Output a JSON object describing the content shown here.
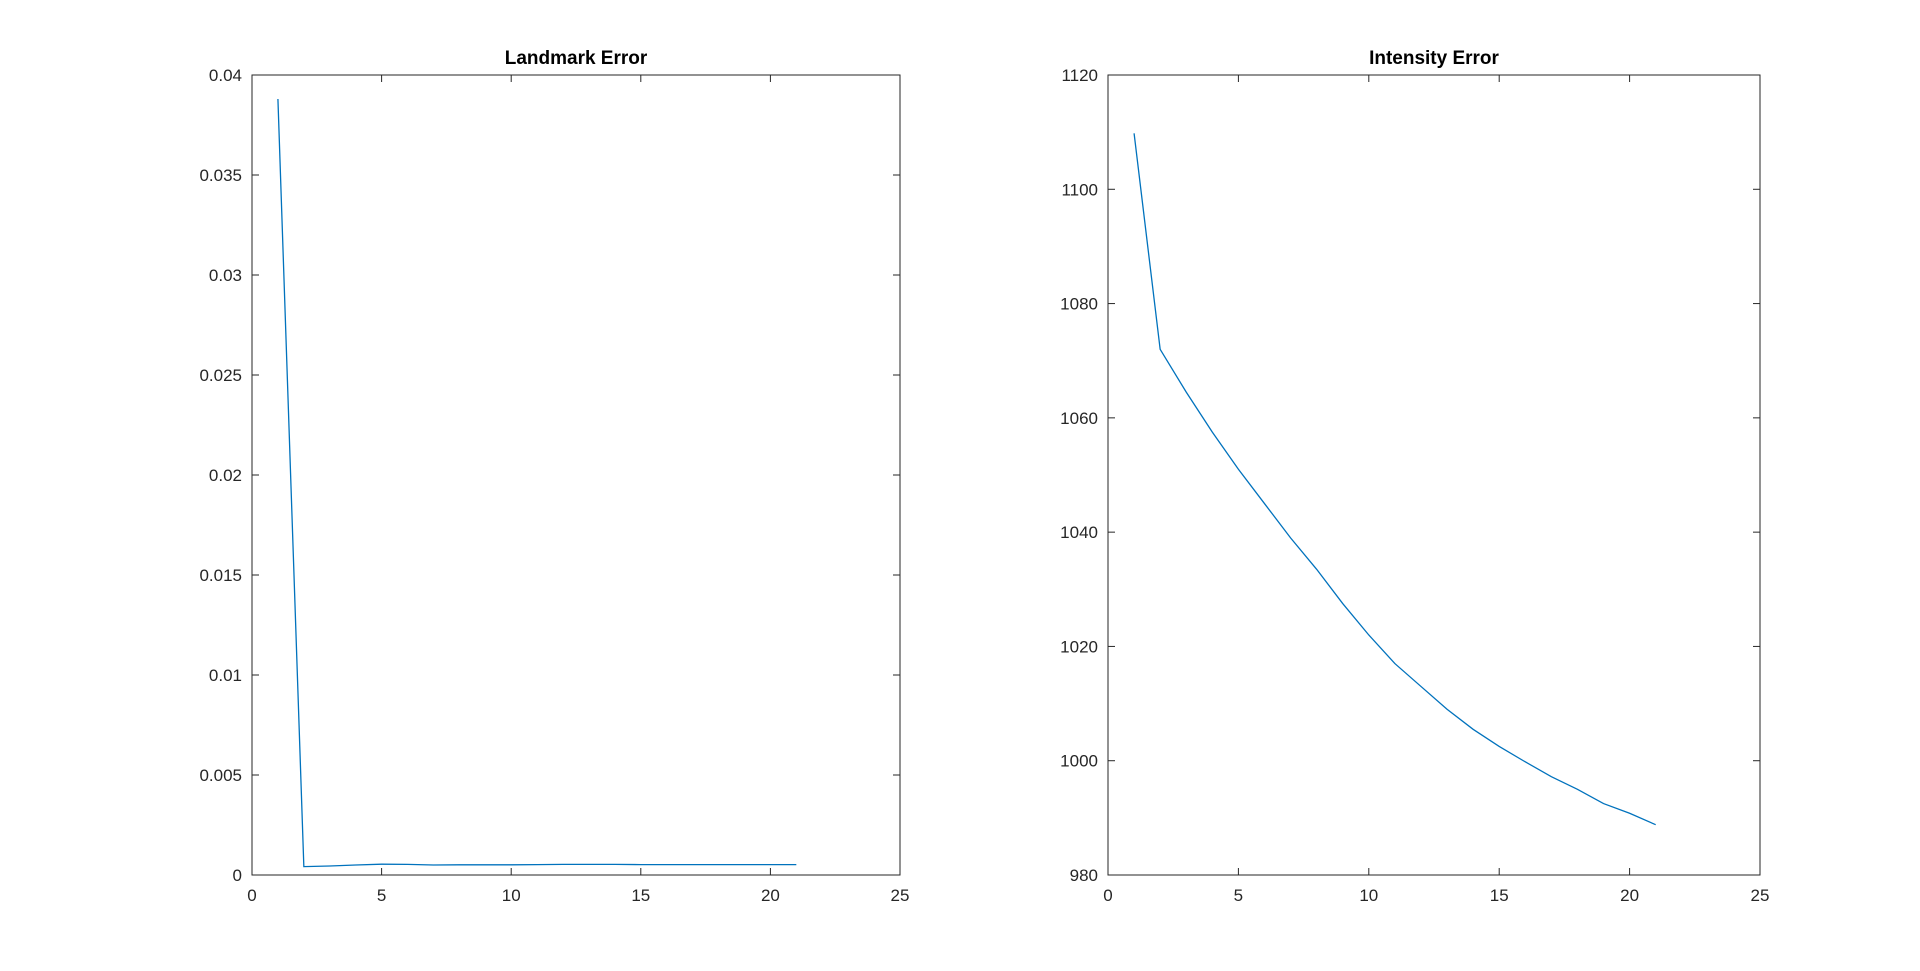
{
  "figure": {
    "background": "#ffffff",
    "axis_color": "#262626"
  },
  "chart_data": [
    {
      "type": "line",
      "title": "Landmark Error",
      "xlabel": "",
      "ylabel": "",
      "xlim": [
        0,
        25
      ],
      "ylim": [
        0,
        0.04
      ],
      "xticks": [
        0,
        5,
        10,
        15,
        20,
        25
      ],
      "xtick_labels": [
        "0",
        "5",
        "10",
        "15",
        "20",
        "25"
      ],
      "yticks": [
        0,
        0.005,
        0.01,
        0.015,
        0.02,
        0.025,
        0.03,
        0.035,
        0.04
      ],
      "ytick_labels": [
        "0",
        "0.005",
        "0.01",
        "0.015",
        "0.02",
        "0.025",
        "0.03",
        "0.035",
        "0.04"
      ],
      "grid": false,
      "series": [
        {
          "color": "#0072BD",
          "x": [
            1,
            2,
            3,
            4,
            5,
            6,
            7,
            8,
            9,
            10,
            11,
            12,
            13,
            14,
            15,
            16,
            17,
            18,
            19,
            20,
            21
          ],
          "y": [
            0.0388,
            0.00042,
            0.00045,
            0.0005,
            0.00054,
            0.00053,
            0.0005,
            0.00051,
            0.00051,
            0.00051,
            0.00052,
            0.00053,
            0.00053,
            0.00053,
            0.00052,
            0.00052,
            0.00052,
            0.00052,
            0.00052,
            0.00052,
            0.00052
          ]
        }
      ]
    },
    {
      "type": "line",
      "title": "Intensity Error",
      "xlabel": "",
      "ylabel": "",
      "xlim": [
        0,
        25
      ],
      "ylim": [
        980,
        1120
      ],
      "xticks": [
        0,
        5,
        10,
        15,
        20,
        25
      ],
      "xtick_labels": [
        "0",
        "5",
        "10",
        "15",
        "20",
        "25"
      ],
      "yticks": [
        980,
        1000,
        1020,
        1040,
        1060,
        1080,
        1100,
        1120
      ],
      "ytick_labels": [
        "980",
        "1000",
        "1020",
        "1040",
        "1060",
        "1080",
        "1100",
        "1120"
      ],
      "grid": false,
      "series": [
        {
          "color": "#0072BD",
          "x": [
            1,
            2,
            3,
            4,
            5,
            6,
            7,
            8,
            9,
            10,
            11,
            12,
            13,
            14,
            15,
            16,
            17,
            18,
            19,
            20,
            21
          ],
          "y": [
            1109.8,
            1072.0,
            1064.5,
            1057.5,
            1051.0,
            1045.0,
            1039.0,
            1033.5,
            1027.5,
            1022.0,
            1017.0,
            1013.0,
            1009.0,
            1005.5,
            1002.5,
            999.8,
            997.2,
            995.0,
            992.5,
            990.8,
            988.8
          ]
        }
      ]
    }
  ]
}
